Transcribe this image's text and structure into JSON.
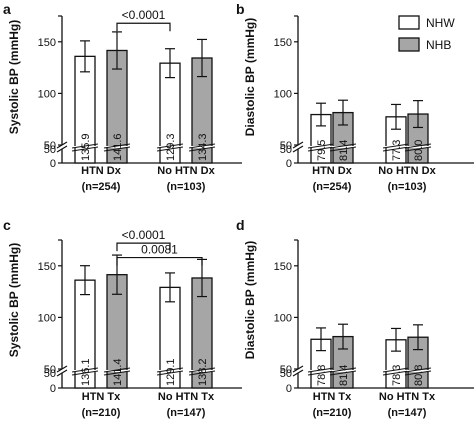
{
  "colors": {
    "bar_white": "#ffffff",
    "bar_grey": "#a6a6a6",
    "ink": "#111111"
  },
  "legend": {
    "placement": "top-right",
    "items": [
      {
        "name": "NHW",
        "color": "#ffffff"
      },
      {
        "name": "NHB",
        "color": "#a6a6a6"
      }
    ]
  },
  "chart_data": [
    {
      "panel": "a",
      "type": "bar",
      "ylabel": "Systolic BP (mmHg)",
      "y_axis": {
        "broken": true,
        "lower_range": [
          0,
          50
        ],
        "upper_range": [
          50,
          175
        ],
        "ticks": [
          0,
          50,
          100,
          150,
          175
        ]
      },
      "categories": [
        {
          "line1": "HTN Dx",
          "line2": "(n=254)"
        },
        {
          "line1": "No HTN Dx",
          "line2": "(n=103)"
        }
      ],
      "series": [
        {
          "name": "NHW",
          "values": [
            135.9,
            129.3
          ],
          "errors": [
            15,
            14
          ],
          "labels": [
            "135.9",
            "129.3"
          ]
        },
        {
          "name": "NHB",
          "values": [
            141.6,
            134.3
          ],
          "errors": [
            18,
            18
          ],
          "labels": [
            "141.6",
            "134.3"
          ]
        }
      ],
      "annotations": [
        {
          "text": "<0.0001",
          "from": [
            0,
            1
          ],
          "to": [
            1,
            0
          ],
          "level": 168
        }
      ]
    },
    {
      "panel": "b",
      "type": "bar",
      "ylabel": "Diastolic BP (mmHg)",
      "y_axis": {
        "broken": true,
        "lower_range": [
          0,
          50
        ],
        "upper_range": [
          50,
          175
        ],
        "ticks": [
          0,
          50,
          100,
          150,
          175
        ]
      },
      "categories": [
        {
          "line1": "HTN Dx",
          "line2": "(n=254)"
        },
        {
          "line1": "No HTN Dx",
          "line2": "(n=103)"
        }
      ],
      "series": [
        {
          "name": "NHW",
          "values": [
            79.5,
            77.3
          ],
          "errors": [
            11,
            12
          ],
          "labels": [
            "79.5",
            "77.3"
          ]
        },
        {
          "name": "NHB",
          "values": [
            81.4,
            80.0
          ],
          "errors": [
            12,
            13
          ],
          "labels": [
            "81.4",
            "80.0"
          ]
        }
      ],
      "annotations": []
    },
    {
      "panel": "c",
      "type": "bar",
      "ylabel": "Systolic BP (mmHg)",
      "y_axis": {
        "broken": true,
        "lower_range": [
          0,
          50
        ],
        "upper_range": [
          50,
          175
        ],
        "ticks": [
          0,
          50,
          100,
          150,
          175
        ]
      },
      "categories": [
        {
          "line1": "HTN Tx",
          "line2": "(n=210)"
        },
        {
          "line1": "No HTN Tx",
          "line2": "(n=147)"
        }
      ],
      "series": [
        {
          "name": "NHW",
          "values": [
            136.1,
            129.1
          ],
          "errors": [
            14,
            14
          ],
          "labels": [
            "136.1",
            "129.1"
          ]
        },
        {
          "name": "NHB",
          "values": [
            141.4,
            138.2
          ],
          "errors": [
            19,
            18
          ],
          "labels": [
            "141.4",
            "138.2"
          ]
        }
      ],
      "annotations": [
        {
          "text": "<0.0001",
          "from": [
            0,
            1
          ],
          "to": [
            1,
            0
          ],
          "level": 172
        },
        {
          "text": "0.0081",
          "from": [
            1,
            0
          ],
          "to": [
            1,
            1
          ],
          "level": 158
        }
      ]
    },
    {
      "panel": "d",
      "type": "bar",
      "ylabel": "Diastolic BP (mmHg)",
      "y_axis": {
        "broken": true,
        "lower_range": [
          0,
          50
        ],
        "upper_range": [
          50,
          175
        ],
        "ticks": [
          0,
          50,
          100,
          150,
          175
        ]
      },
      "categories": [
        {
          "line1": "HTN Tx",
          "line2": "(n=210)"
        },
        {
          "line1": "No HTN Tx",
          "line2": "(n=147)"
        }
      ],
      "series": [
        {
          "name": "NHW",
          "values": [
            78.8,
            78.3
          ],
          "errors": [
            11,
            11
          ],
          "labels": [
            "78.8",
            "78.3"
          ]
        },
        {
          "name": "NHB",
          "values": [
            81.4,
            80.8
          ],
          "errors": [
            12,
            12
          ],
          "labels": [
            "81.4",
            "80.8"
          ]
        }
      ],
      "annotations": []
    }
  ]
}
